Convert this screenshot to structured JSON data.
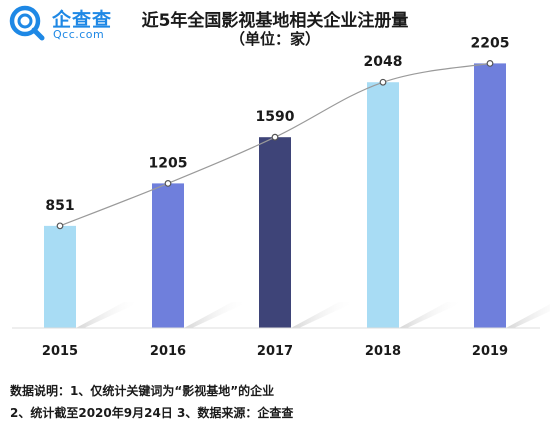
{
  "brand": {
    "name_cn": "企查查",
    "name_en": "Qcc.com"
  },
  "colors": {
    "light_blue": "#a8dcf4",
    "mid_blue": "#6f7fdc",
    "dark_navy": "#3e4478",
    "trend_line": "#9a9a9a",
    "brand": "#1e88e5"
  },
  "chart_data": {
    "type": "bar",
    "title": "近5年全国影视基地相关企业注册量",
    "subtitle": "（单位：家）",
    "categories": [
      "2015",
      "2016",
      "2017",
      "2018",
      "2019"
    ],
    "values": [
      851,
      1205,
      1590,
      2048,
      2205
    ],
    "value_labels": [
      "851",
      "1205",
      "1590",
      "2048",
      "2205"
    ],
    "bar_colors": [
      "#a8dcf4",
      "#6f7fdc",
      "#3e4478",
      "#a8dcf4",
      "#6f7fdc"
    ],
    "trend_line": true,
    "ylim": [
      0,
      2400
    ],
    "grid": false,
    "legend": "none"
  },
  "notes": {
    "line1": "数据说明：1、仅统计关键词为“影视基地”的企业",
    "line2": "2、统计截至2020年9月24日    3、数据来源：企查查"
  }
}
